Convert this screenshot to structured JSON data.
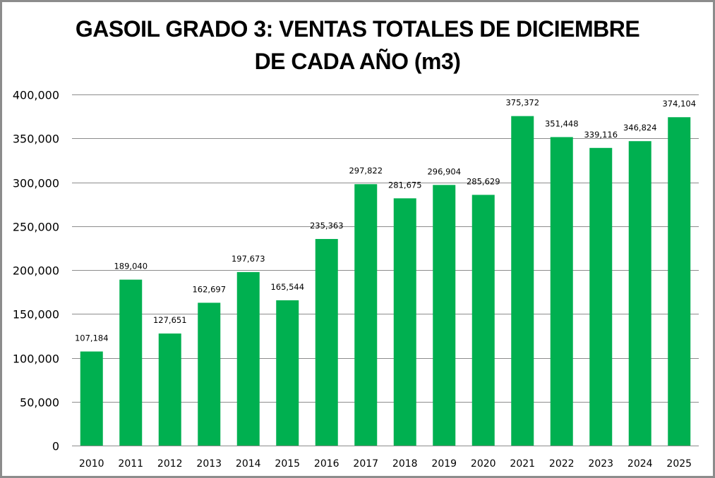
{
  "chart_data": {
    "type": "bar",
    "title": [
      "GASOIL GRADO 3: VENTAS TOTALES DE DICIEMBRE",
      "DE CADA AÑO (m3)"
    ],
    "xlabel": "",
    "ylabel": "",
    "categories": [
      "2010",
      "2011",
      "2012",
      "2013",
      "2014",
      "2015",
      "2016",
      "2017",
      "2018",
      "2019",
      "2020",
      "2021",
      "2022",
      "2023",
      "2024",
      "2025"
    ],
    "values": [
      107184,
      189040,
      127651,
      162697,
      197673,
      165544,
      235363,
      297822,
      281675,
      296904,
      285629,
      375372,
      351448,
      339116,
      346824,
      374104
    ],
    "data_labels": [
      "107,184",
      "189,040",
      "127,651",
      "162,697",
      "197,673",
      "165,544",
      "235,363",
      "297,822",
      "281,675",
      "296,904",
      "285,629",
      "375,372",
      "351,448",
      "339,116",
      "346,824",
      "374,104"
    ],
    "ylim": [
      0,
      400000
    ],
    "yticks": [
      0,
      50000,
      100000,
      150000,
      200000,
      250000,
      300000,
      350000,
      400000
    ],
    "ytick_labels": [
      "0",
      "50,000",
      "100,000",
      "150,000",
      "200,000",
      "250,000",
      "300,000",
      "350,000",
      "400,000"
    ],
    "grid": true,
    "legend": "none",
    "colors": {
      "bar": "#00B050",
      "grid": "#8c8c8c",
      "border": "#8c8c8c"
    }
  }
}
